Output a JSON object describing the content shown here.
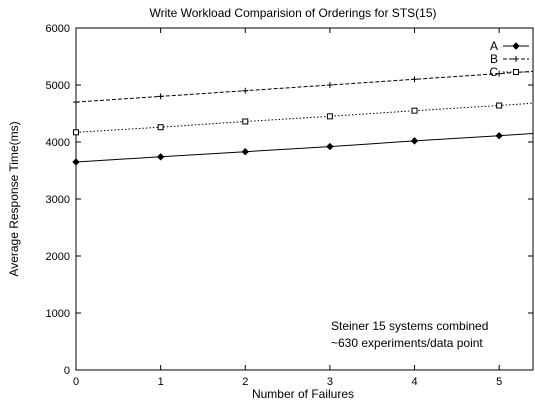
{
  "chart_data": {
    "type": "line",
    "title": "Write Workload Comparision of Orderings for STS(15)",
    "xlabel": "Number of Failures",
    "ylabel": "Average Response Time(ms)",
    "xlim": [
      0,
      5.4
    ],
    "ylim": [
      0,
      6000
    ],
    "x_ticks": [
      "0",
      "1",
      "2",
      "3",
      "4",
      "5"
    ],
    "y_ticks": [
      "0",
      "1000",
      "2000",
      "3000",
      "4000",
      "5000",
      "6000"
    ],
    "grid": false,
    "legend_position": "top-right",
    "x": [
      0,
      1,
      2,
      3,
      4,
      5,
      5.4
    ],
    "series": [
      {
        "name": "A",
        "values": [
          3650,
          3740,
          3830,
          3920,
          4020,
          4110,
          4150
        ],
        "marker": "diamond",
        "dash": "solid"
      },
      {
        "name": "B",
        "values": [
          4700,
          4800,
          4900,
          5000,
          5100,
          5200,
          5240
        ],
        "marker": "plus",
        "dash": "dashed"
      },
      {
        "name": "C",
        "values": [
          4170,
          4260,
          4360,
          4450,
          4550,
          4640,
          4680
        ],
        "marker": "square",
        "dash": "dotted"
      }
    ],
    "annotations": [
      "Steiner 15 systems combined",
      "~630 experiments/data point"
    ]
  }
}
